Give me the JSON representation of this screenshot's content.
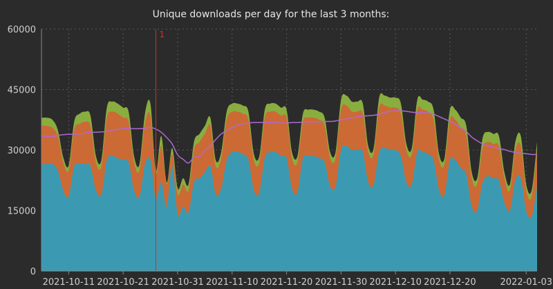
{
  "chart_data": {
    "type": "area",
    "title": "Unique downloads per day for the last 3 months:",
    "x_start": "2021-10-06",
    "x_end": "2022-01-05",
    "x_ticks": [
      "2021-10-11",
      "2021-10-21",
      "2021-10-31",
      "2021-11-10",
      "2021-11-20",
      "2021-11-30",
      "2021-12-10",
      "2021-12-20",
      "2022-01-03"
    ],
    "y_ticks": [
      0,
      15000,
      30000,
      45000,
      60000
    ],
    "ylim": [
      0,
      60000
    ],
    "grid": true,
    "stacked": true,
    "colors": {
      "series1": "#3b9ab2",
      "series2": "#cc6a35",
      "series3": "#8aad3f",
      "avg_line": "#b168d2",
      "annotation": "#c0392b",
      "background": "#2b2b2b"
    },
    "annotation": {
      "date": "2021-10-27",
      "label": "1"
    },
    "series": [
      {
        "values": [
          26500,
          26500,
          26500,
          25000,
          20000,
          18500,
          26000,
          26500,
          26500,
          26000,
          20000,
          19000,
          27500,
          28500,
          28000,
          27500,
          27000,
          20000,
          18500,
          26500,
          27500,
          18000,
          22000,
          16000,
          26000,
          14000,
          16000,
          14500,
          22000,
          23000,
          24500,
          26000,
          19000,
          20500,
          27500,
          29500,
          29500,
          29000,
          27500,
          20000,
          19500,
          28000,
          29500,
          29500,
          28500,
          28000,
          20500,
          19500,
          28000,
          28500,
          28500,
          28000,
          27000,
          21000,
          21000,
          30000,
          31000,
          30000,
          30000,
          29500,
          22000,
          21500,
          29500,
          30500,
          30000,
          30000,
          28500,
          22000,
          21500,
          29500,
          29500,
          29000,
          27500,
          20000,
          19000,
          27500,
          27500,
          25500,
          24000,
          16000,
          15000,
          22000,
          23500,
          23000,
          22500,
          17000,
          15000,
          22500,
          23000,
          15000,
          13500,
          21000
        ]
      },
      {
        "values": [
          9500,
          9500,
          9000,
          8500,
          7000,
          6500,
          9000,
          10000,
          10500,
          10000,
          7000,
          7000,
          10500,
          11000,
          11000,
          10500,
          10000,
          7000,
          6500,
          10000,
          11000,
          6000,
          9000,
          5500,
          3000,
          5000,
          5500,
          5500,
          8000,
          9000,
          9500,
          10000,
          7000,
          7500,
          10000,
          10000,
          10000,
          10000,
          10000,
          7500,
          7500,
          10000,
          10000,
          10000,
          10000,
          10000,
          7500,
          7500,
          9000,
          9500,
          9500,
          9500,
          9000,
          7000,
          7000,
          10000,
          10000,
          9500,
          9500,
          9500,
          7500,
          7500,
          11000,
          10500,
          10500,
          10500,
          10500,
          8000,
          7500,
          10500,
          10500,
          10500,
          10000,
          7500,
          7500,
          10000,
          10000,
          10000,
          9500,
          7000,
          6500,
          8500,
          8500,
          8500,
          8500,
          6000,
          5000,
          7500,
          8000,
          5000,
          5000,
          9000
        ]
      },
      {
        "values": [
          2000,
          2000,
          2000,
          1500,
          1200,
          1200,
          2000,
          2500,
          2500,
          2500,
          1500,
          1500,
          2500,
          2500,
          2500,
          2500,
          2500,
          1500,
          1500,
          2500,
          3000,
          1000,
          2500,
          500,
          1500,
          1500,
          1500,
          1500,
          2000,
          2000,
          2000,
          2000,
          1500,
          1500,
          2000,
          2000,
          2000,
          2000,
          2000,
          1500,
          1500,
          2000,
          2000,
          2000,
          2000,
          2000,
          1500,
          1500,
          2000,
          2000,
          2000,
          2000,
          2000,
          1500,
          1500,
          2500,
          2500,
          2500,
          2500,
          2500,
          1500,
          1500,
          2500,
          2500,
          2500,
          2500,
          2500,
          1500,
          1500,
          2500,
          2500,
          2500,
          2500,
          1500,
          1500,
          2500,
          2500,
          2500,
          2500,
          1500,
          1500,
          2500,
          2500,
          2500,
          2500,
          1500,
          1500,
          2000,
          2500,
          1500,
          1500,
          2000
        ]
      },
      {
        "type": "line",
        "values": [
          33500,
          33400,
          33300,
          33600,
          33800,
          33900,
          33900,
          34000,
          34200,
          34400,
          34400,
          34500,
          34600,
          34900,
          35100,
          35300,
          35400,
          35300,
          35300,
          35400,
          35600,
          35200,
          34400,
          33100,
          31500,
          28800,
          27700,
          26800,
          28200,
          28400,
          29800,
          31000,
          32600,
          34000,
          34800,
          35600,
          36200,
          36500,
          36700,
          36800,
          36800,
          36800,
          36800,
          36800,
          36700,
          36700,
          36800,
          36800,
          36900,
          37000,
          37000,
          37000,
          37100,
          37100,
          37200,
          37500,
          37700,
          38000,
          38200,
          38400,
          38500,
          38600,
          38900,
          39300,
          39600,
          39700,
          39700,
          39600,
          39400,
          39300,
          39300,
          39200,
          38900,
          38300,
          37700,
          37100,
          36400,
          35500,
          34600,
          33200,
          32300,
          31500,
          31000,
          30700,
          30400,
          30100,
          29700,
          29400,
          29200,
          29100,
          28900,
          28900
        ]
      }
    ]
  }
}
